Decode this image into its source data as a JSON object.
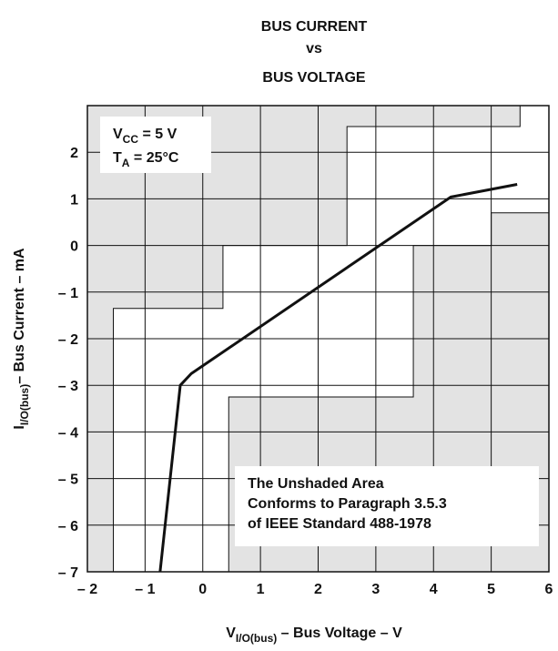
{
  "chart_data": {
    "type": "line",
    "title": [
      "BUS CURRENT",
      "vs",
      "BUS VOLTAGE"
    ],
    "xlabel": {
      "base": "V",
      "sub": "I/O(bus)",
      "rest": " – Bus Voltage – V"
    },
    "ylabel": {
      "base": "I",
      "sub": "I/O(bus)",
      "rest": "– Bus Current – mA"
    },
    "xlim": [
      -2,
      6
    ],
    "ylim": [
      -7,
      3
    ],
    "xticks": [
      {
        "value": -2,
        "label": "– 2"
      },
      {
        "value": -1,
        "label": "– 1"
      },
      0,
      1,
      2,
      3,
      4,
      5,
      6
    ],
    "yticks": [
      {
        "value": -7,
        "label": "– 7"
      },
      {
        "value": -6,
        "label": "– 6"
      },
      {
        "value": -5,
        "label": "– 5"
      },
      {
        "value": -4,
        "label": "– 4"
      },
      {
        "value": -3,
        "label": "– 3"
      },
      {
        "value": -2,
        "label": "– 2"
      },
      {
        "value": -1,
        "label": "– 1"
      },
      0,
      1,
      2
    ],
    "grid": true,
    "series": [
      {
        "color": "#111111",
        "x": [
          -0.74,
          -0.39,
          -0.2,
          4.3,
          5.45
        ],
        "values": [
          -7,
          -3.0,
          -2.75,
          1.04,
          1.31
        ]
      }
    ],
    "unshaded_region": {
      "x": [
        -1.55,
        -1.55,
        0.35,
        0.35,
        2.5,
        2.5,
        5.5,
        5.5,
        6,
        6,
        5,
        5,
        3.65,
        3.65,
        0.45,
        0.45
      ],
      "y": [
        -7,
        -1.35,
        -1.35,
        0,
        0,
        2.55,
        2.55,
        3,
        3,
        0.7,
        0.7,
        0,
        0,
        -3.25,
        -3.25,
        -7
      ]
    },
    "annotations": {
      "conditions": [
        {
          "base": "V",
          "sub": "CC",
          "rest": " = 5 V"
        },
        {
          "base": "T",
          "sub": "A",
          "rest": " = 25°C"
        }
      ],
      "note": [
        "The Unshaded Area",
        "Conforms to Paragraph 3.5.3",
        "of IEEE Standard 488-1978"
      ]
    }
  }
}
